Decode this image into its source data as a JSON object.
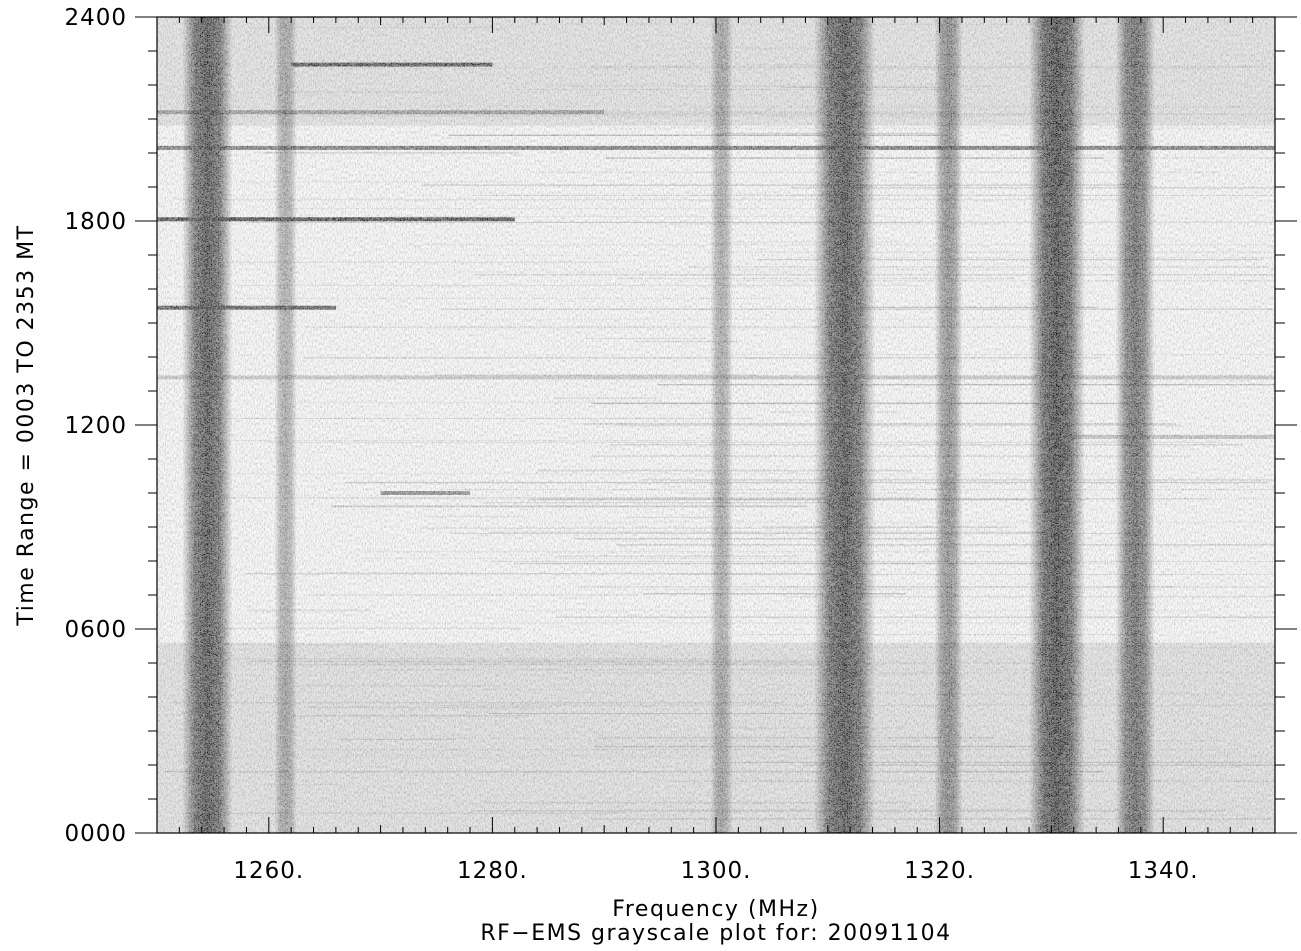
{
  "chart_data": {
    "type": "heatmap",
    "colormap": "grayscale",
    "title": "RF−EMS grayscale plot for: 20091104",
    "xlabel": "Frequency (MHz)",
    "ylabel": "Time Range = 0003   TO   2353 MT",
    "xlim": [
      1250,
      1350
    ],
    "ylim": [
      0,
      2400
    ],
    "x_ticks": [
      1260,
      1280,
      1300,
      1320,
      1340
    ],
    "x_tick_labels": [
      "1260.",
      "1280.",
      "1300.",
      "1320.",
      "1340."
    ],
    "y_ticks": [
      0,
      600,
      1200,
      1800,
      2400
    ],
    "y_tick_labels": [
      "0000",
      "0600",
      "1200",
      "1800",
      "2400"
    ],
    "vertical_bands": [
      {
        "center_mhz": 1254.5,
        "width_mhz": 4.5,
        "intensity": 0.95
      },
      {
        "center_mhz": 1261.5,
        "width_mhz": 2.0,
        "intensity": 0.45
      },
      {
        "center_mhz": 1300.5,
        "width_mhz": 2.0,
        "intensity": 0.45
      },
      {
        "center_mhz": 1311.5,
        "width_mhz": 5.5,
        "intensity": 0.95
      },
      {
        "center_mhz": 1320.8,
        "width_mhz": 2.5,
        "intensity": 0.6
      },
      {
        "center_mhz": 1330.5,
        "width_mhz": 5.0,
        "intensity": 1.0
      },
      {
        "center_mhz": 1337.5,
        "width_mhz": 3.5,
        "intensity": 0.8
      }
    ],
    "background_regions": [
      {
        "time_start": 0,
        "time_end": 560,
        "gray": "#d2d2d2"
      },
      {
        "time_start": 560,
        "time_end": 2080,
        "gray": "#f2f2f2"
      },
      {
        "time_start": 2080,
        "time_end": 2400,
        "gray": "#d4d4d4"
      }
    ],
    "horizontal_streaks": [
      {
        "time": 2260,
        "freq_start": 1262,
        "freq_end": 1280,
        "intensity": 0.9
      },
      {
        "time": 2120,
        "freq_start": 1250,
        "freq_end": 1290,
        "intensity": 0.55
      },
      {
        "time": 2015,
        "freq_start": 1250,
        "freq_end": 1350,
        "intensity": 0.7
      },
      {
        "time": 1805,
        "freq_start": 1250,
        "freq_end": 1282,
        "intensity": 0.95
      },
      {
        "time": 1545,
        "freq_start": 1250,
        "freq_end": 1266,
        "intensity": 0.85
      },
      {
        "time": 1340,
        "freq_start": 1250,
        "freq_end": 1350,
        "intensity": 0.3
      },
      {
        "time": 1165,
        "freq_start": 1330,
        "freq_end": 1350,
        "intensity": 0.35
      },
      {
        "time": 1000,
        "freq_start": 1270,
        "freq_end": 1278,
        "intensity": 0.6
      },
      {
        "time": 225,
        "freq_start": 1250,
        "freq_end": 1350,
        "intensity": 0.2
      }
    ]
  }
}
